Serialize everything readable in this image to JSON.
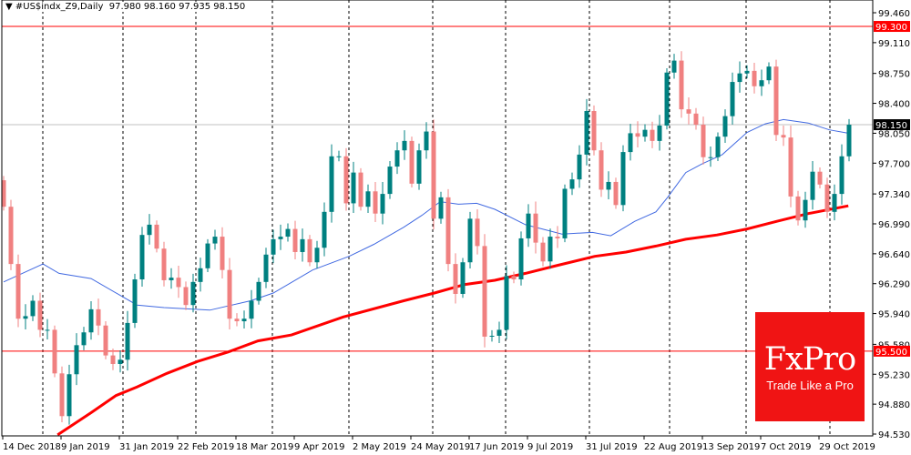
{
  "header": {
    "symbol": "#US$indx_Z9,Daily",
    "open": "97.980",
    "high": "98.160",
    "low": "97.935",
    "close": "98.150"
  },
  "logo": {
    "brand": "FxPro",
    "tagline": "Trade Like a Pro"
  },
  "colors": {
    "bull": "#008080",
    "bear": "#f08080",
    "ma_fast": "#4169e1",
    "ma_slow": "#ff0000",
    "level": "#ff0000",
    "logo_bg": "#f01414"
  },
  "chart_data": {
    "type": "candlestick",
    "title": "#US$indx_Z9,Daily",
    "ylim": [
      94.53,
      99.46
    ],
    "y_ticks": [
      "99.460",
      "99.110",
      "98.750",
      "98.400",
      "98.050",
      "97.700",
      "97.340",
      "96.990",
      "96.640",
      "96.290",
      "95.940",
      "95.580",
      "95.230",
      "94.880",
      "94.530"
    ],
    "x_labels": [
      "14 Dec 2018",
      "9 Jan 2019",
      "31 Jan 2019",
      "22 Feb 2019",
      "18 Mar 2019",
      "9 Apr 2019",
      "2 May 2019",
      "24 May 2019",
      "17 Jun 2019",
      "9 Jul 2019",
      "31 Jul 2019",
      "22 Aug 2019",
      "13 Sep 2019",
      "7 Oct 2019",
      "29 Oct 2019"
    ],
    "first_open": 97.5,
    "closes": [
      97.19,
      96.52,
      95.88,
      95.91,
      96.09,
      95.75,
      95.75,
      95.24,
      94.74,
      95.23,
      95.57,
      95.72,
      95.99,
      95.8,
      95.45,
      95.35,
      95.4,
      95.83,
      96.34,
      96.86,
      96.98,
      96.7,
      96.33,
      96.36,
      96.25,
      96.04,
      96.31,
      96.47,
      96.76,
      96.84,
      96.45,
      95.88,
      95.85,
      95.88,
      96.09,
      96.31,
      96.63,
      96.81,
      96.84,
      96.93,
      96.66,
      96.81,
      96.54,
      96.71,
      97.13,
      97.78,
      97.78,
      97.23,
      97.59,
      97.19,
      97.37,
      97.11,
      97.34,
      97.66,
      97.85,
      97.96,
      97.46,
      97.85,
      98.07,
      97.05,
      97.3,
      96.52,
      96.17,
      96.54,
      97.05,
      96.73,
      95.67,
      95.68,
      95.75,
      96.38,
      96.34,
      96.82,
      97.11,
      96.77,
      96.55,
      96.84,
      96.82,
      97.4,
      97.51,
      97.8,
      98.31,
      97.85,
      97.39,
      97.48,
      97.21,
      97.83,
      98.05,
      98.01,
      98.09,
      97.96,
      98.14,
      98.76,
      98.9,
      98.33,
      98.28,
      98.15,
      97.77,
      97.77,
      98.01,
      98.25,
      98.65,
      98.75,
      98.78,
      98.6,
      98.67,
      98.83,
      98.03,
      98.0,
      97.31,
      97.03,
      97.27,
      97.6,
      97.45,
      97.13,
      97.34,
      97.78,
      98.15
    ],
    "ma_fast": [
      [
        0,
        96.31
      ],
      [
        5.4,
        96.52
      ],
      [
        7.6,
        96.41
      ],
      [
        12,
        96.35
      ],
      [
        18.3,
        96.04
      ],
      [
        22,
        96.01
      ],
      [
        28.3,
        95.98
      ],
      [
        33.9,
        96.09
      ],
      [
        37,
        96.18
      ],
      [
        42.4,
        96.45
      ],
      [
        47.4,
        96.61
      ],
      [
        50.8,
        96.75
      ],
      [
        54.9,
        96.95
      ],
      [
        57.4,
        97.09
      ],
      [
        59.9,
        97.25
      ],
      [
        62.4,
        97.22
      ],
      [
        64.9,
        97.23
      ],
      [
        67.4,
        97.16
      ],
      [
        71.6,
        96.98
      ],
      [
        76.6,
        96.87
      ],
      [
        80.8,
        96.89
      ],
      [
        83.3,
        96.85
      ],
      [
        86.6,
        97.02
      ],
      [
        89.5,
        97.13
      ],
      [
        91.1,
        97.3
      ],
      [
        93.6,
        97.59
      ],
      [
        95.8,
        97.69
      ],
      [
        98.6,
        97.8
      ],
      [
        102,
        98.06
      ],
      [
        104.5,
        98.16
      ],
      [
        107,
        98.21
      ],
      [
        110.4,
        98.17
      ],
      [
        113.3,
        98.09
      ],
      [
        115.9,
        98.05
      ]
    ],
    "ma_slow": [
      [
        7.4,
        94.52
      ],
      [
        12,
        94.78
      ],
      [
        15.4,
        94.98
      ],
      [
        18.3,
        95.08
      ],
      [
        22.4,
        95.24
      ],
      [
        26.6,
        95.38
      ],
      [
        30.8,
        95.49
      ],
      [
        34.9,
        95.62
      ],
      [
        39.5,
        95.69
      ],
      [
        46.6,
        95.9
      ],
      [
        54.9,
        96.09
      ],
      [
        59.1,
        96.18
      ],
      [
        63.3,
        96.28
      ],
      [
        67.4,
        96.33
      ],
      [
        71.6,
        96.41
      ],
      [
        75.8,
        96.5
      ],
      [
        81.1,
        96.61
      ],
      [
        85.4,
        96.66
      ],
      [
        89.5,
        96.73
      ],
      [
        93.6,
        96.81
      ],
      [
        97.9,
        96.86
      ],
      [
        102,
        96.93
      ],
      [
        106.1,
        97.02
      ],
      [
        110.4,
        97.11
      ],
      [
        115.9,
        97.2
      ]
    ],
    "levels": [
      {
        "price": 99.3,
        "label": "99.300",
        "kind": "resistance"
      },
      {
        "price": 95.5,
        "label": "95.500",
        "kind": "support"
      }
    ],
    "current_price": {
      "price": 98.15,
      "label": "98.150"
    }
  }
}
